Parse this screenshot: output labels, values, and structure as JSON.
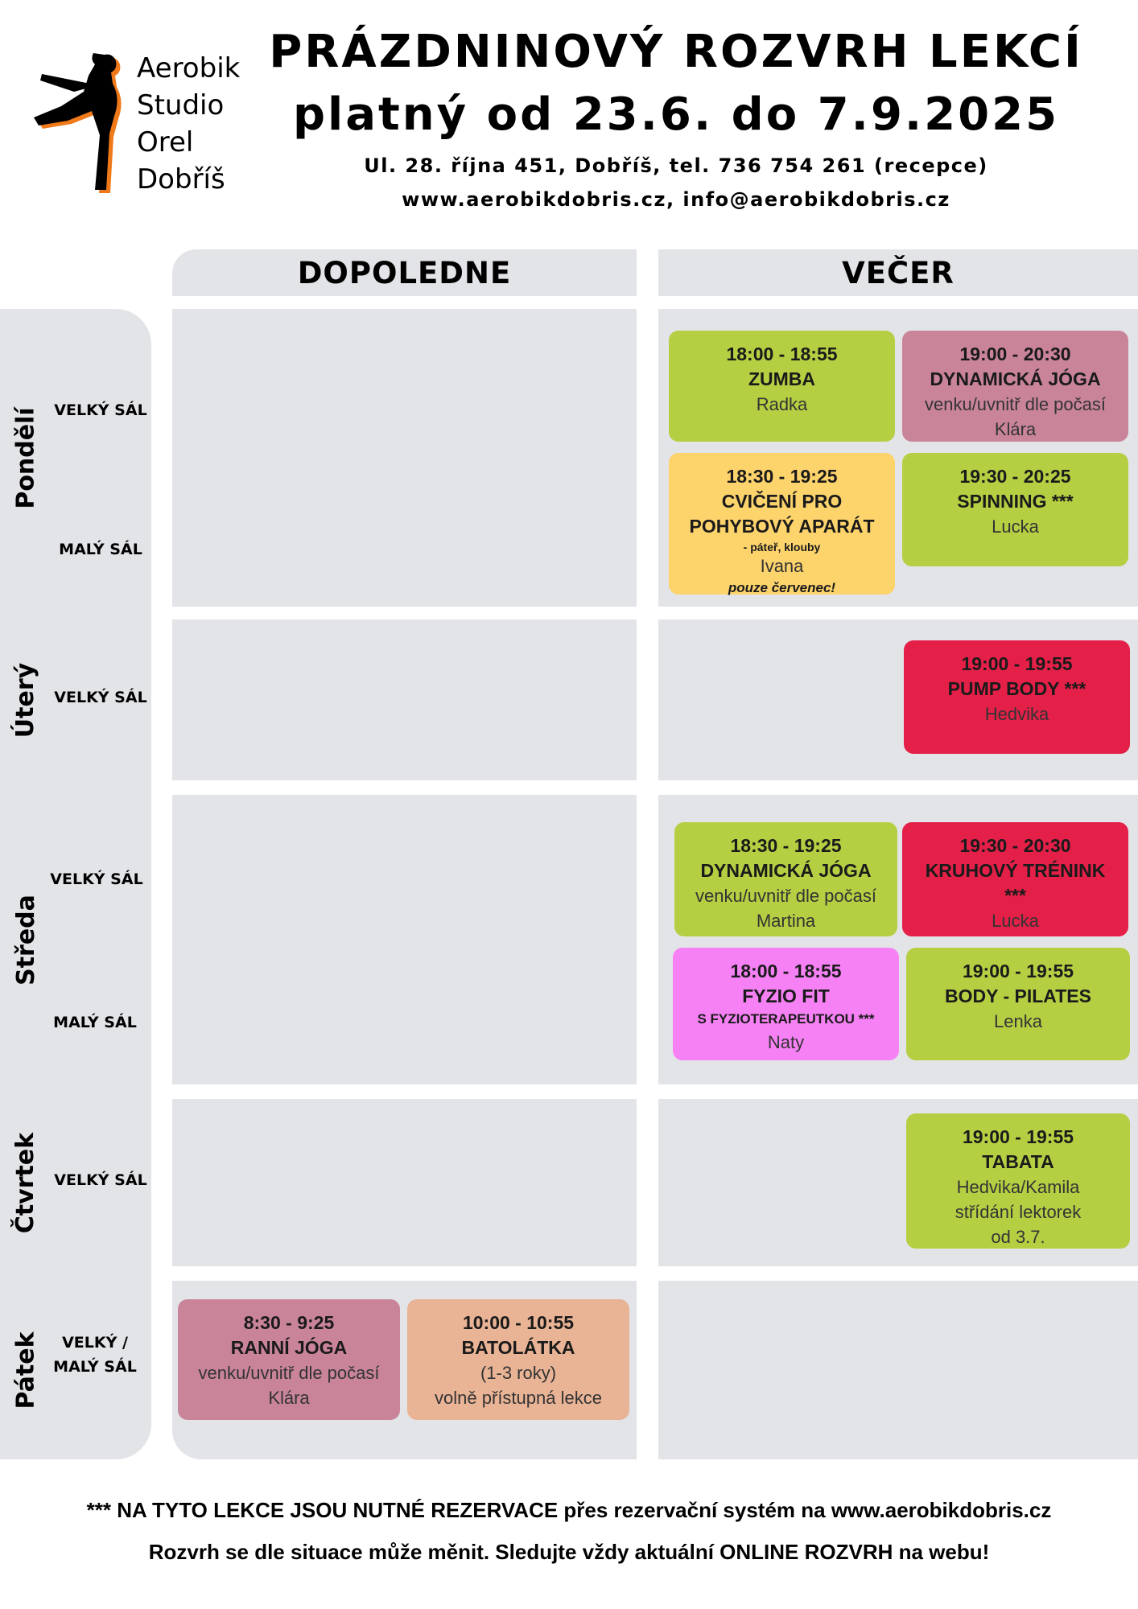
{
  "logo": {
    "lines": [
      "Aerobik",
      "Studio",
      "Orel",
      "Dobříš"
    ]
  },
  "header": {
    "title": "PRÁZDNINOVÝ ROZVRH LEKCÍ",
    "subtitle": "platný od 23.6. do 7.9.2025",
    "address": "Ul. 28. října 451, Dobříš, tel. 736 754 261 (recepce)",
    "web": "www.aerobikdobris.cz, info@aerobikdobris.cz"
  },
  "columns": {
    "morning": "DOPOLEDNE",
    "evening": "VEČER"
  },
  "days": {
    "monday": "Pondělí",
    "tuesday": "Úterý",
    "wednesday": "Středa",
    "thursday": "Čtvrtek",
    "friday": "Pátek"
  },
  "rooms": {
    "velky": "VELKÝ SÁL",
    "maly": "MALÝ SÁL",
    "velky_maly_1": "VELKÝ /",
    "velky_maly_2": "MALÝ SÁL"
  },
  "classes": {
    "mon_zumba": {
      "time": "18:00 - 18:55",
      "name": "ZUMBA",
      "trainer": "Radka"
    },
    "mon_joga": {
      "time": "19:00 - 20:30",
      "name": "DYNAMICKÁ JÓGA",
      "note": "venku/uvnitř dle počasí",
      "trainer": "Klára"
    },
    "mon_cviceni": {
      "time": "18:30 - 19:25",
      "name1": "CVIČENÍ PRO",
      "name2": "POHYBOVÝ APARÁT",
      "note": "- páteř, klouby",
      "trainer": "Ivana",
      "extra": "pouze červenec!"
    },
    "mon_spinning": {
      "time": "19:30 - 20:25",
      "name": "SPINNING ***",
      "trainer": "Lucka"
    },
    "tue_pump": {
      "time": "19:00 - 19:55",
      "name": "PUMP BODY ***",
      "trainer": "Hedvika"
    },
    "wed_joga": {
      "time": "18:30 - 19:25",
      "name": "DYNAMICKÁ JÓGA",
      "note": "venku/uvnitř dle počasí",
      "trainer": "Martina"
    },
    "wed_kruhovy": {
      "time": "19:30 - 20:30",
      "name": "KRUHOVÝ TRÉNINK",
      "name2": "***",
      "trainer": "Lucka"
    },
    "wed_fyzio": {
      "time": "18:00 - 18:55",
      "name": "FYZIO FIT",
      "note": "S FYZIOTERAPEUTKOU ***",
      "trainer": "Naty"
    },
    "wed_pilates": {
      "time": "19:00 - 19:55",
      "name": "BODY - PILATES",
      "trainer": "Lenka"
    },
    "thu_tabata": {
      "time": "19:00 - 19:55",
      "name": "TABATA",
      "trainer": "Hedvika/Kamila",
      "note1": "střídání lektorek",
      "note2": "od 3.7."
    },
    "fri_joga": {
      "time": "8:30 - 9:25",
      "name": "RANNÍ JÓGA",
      "note": "venku/uvnitř dle počasí",
      "trainer": "Klára"
    },
    "fri_batolatka": {
      "time": "10:00 - 10:55",
      "name": "BATOLÁTKA",
      "note1": "(1-3 roky)",
      "note2": "volně přístupná lekce"
    }
  },
  "footer": {
    "line1": "*** NA TYTO LEKCE JSOU NUTNÉ REZERVACE přes rezervační systém na www.aerobikdobris.cz",
    "line2": "Rozvrh se dle situace může měnit. Sledujte vždy aktuální ONLINE ROZVRH na webu!"
  },
  "colors": {
    "green": "#b5cf43",
    "mauve": "#c9849a",
    "yellow": "#fdd36c",
    "red": "#e42048",
    "pink": "#f581f4",
    "salmon": "#e9b395",
    "panel": "#e3e4e8",
    "logo_accent": "#f07a1a"
  }
}
